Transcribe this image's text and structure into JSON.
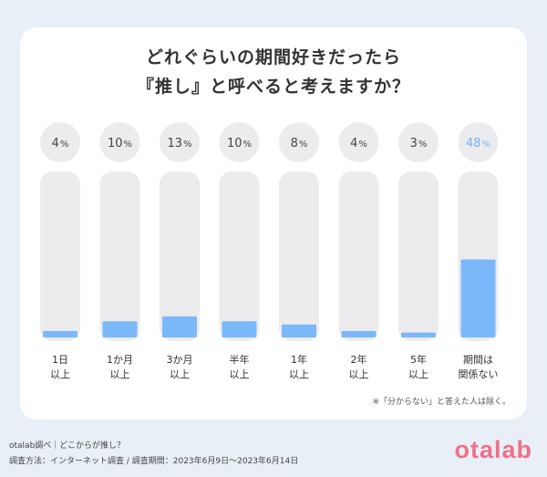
{
  "title_line1": "どれぐらいの期間好きだったら",
  "title_line2": "『推し』と呼べると考えますか？",
  "chart_data": {
    "type": "bar",
    "categories": [
      [
        "1日",
        "以上"
      ],
      [
        "1か月",
        "以上"
      ],
      [
        "3か月",
        "以上"
      ],
      [
        "半年",
        "以上"
      ],
      [
        "1年",
        "以上"
      ],
      [
        "2年",
        "以上"
      ],
      [
        "5年",
        "以上"
      ],
      [
        "期間は",
        "関係ない"
      ]
    ],
    "values": [
      4,
      10,
      13,
      10,
      8,
      4,
      3,
      48
    ],
    "labels": [
      "4%",
      "10%",
      "13%",
      "10%",
      "8%",
      "4%",
      "3%",
      "48%"
    ],
    "ylim": [
      0,
      100
    ],
    "highlight_index": 7,
    "colors": {
      "bar": "#7bb8fa",
      "bar_track": "#ececef",
      "label_circle": "#ececef",
      "highlight_text": "#6fb3f2",
      "text": "#444444"
    }
  },
  "note": "※「分からない」と答えた人は除く。",
  "footer_line1": "otalab調べ｜どこからが推し？",
  "footer_line2": "調査方法：インターネット調査 / 調査期間：2023年6月9日〜2023年6月14日",
  "logo_text": "otalab",
  "colors": {
    "background": "#e9eff6",
    "card": "#ffffff",
    "logo": "#f0708a"
  }
}
